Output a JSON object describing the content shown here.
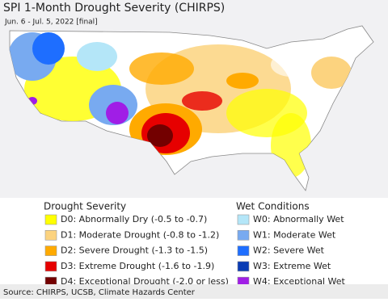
{
  "header": {
    "title": "SPI 1-Month Drought Severity (CHIRPS)",
    "subtitle": "Jun. 6 - Jul. 5, 2022 [final]"
  },
  "legend": {
    "drought": {
      "title": "Drought Severity",
      "items": [
        {
          "label": "D0: Abnormally Dry (-0.5 to -0.7)",
          "color": "#ffff00"
        },
        {
          "label": "D1: Moderate Drought (-0.8 to -1.2)",
          "color": "#fcd37f"
        },
        {
          "label": "D2: Severe Drought (-1.3 to -1.5)",
          "color": "#ffaa00"
        },
        {
          "label": "D3: Extreme Drought (-1.6 to -1.9)",
          "color": "#e60000"
        },
        {
          "label": "D4: Exceptional Drought (-2.0 or less)",
          "color": "#730000"
        }
      ]
    },
    "wet": {
      "title": "Wet Conditions",
      "items": [
        {
          "label": "W0: Abnormally Wet",
          "color": "#b4e6f8"
        },
        {
          "label": "W1: Moderate Wet",
          "color": "#78aaf0"
        },
        {
          "label": "W2: Severe Wet",
          "color": "#1e6eff"
        },
        {
          "label": "W3: Extreme Wet",
          "color": "#0a3cb4"
        },
        {
          "label": "W4: Exceptional Wet",
          "color": "#a01ee6"
        }
      ]
    }
  },
  "footer": {
    "source": "Source: CHIRPS, UCSB, Climate Hazards Center"
  }
}
